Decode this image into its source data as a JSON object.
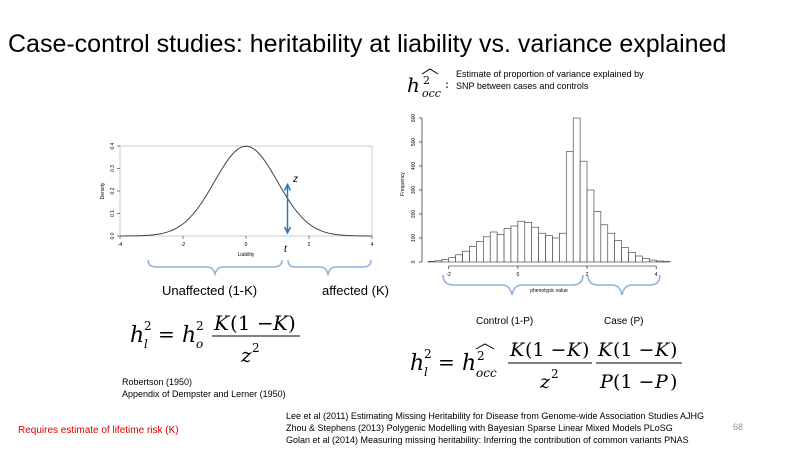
{
  "slide": {
    "title": "Case-control studies: heritability at liability vs. variance explained",
    "page_number": "68"
  },
  "estimate_note": {
    "line1": "Estimate of proportion of variance explained by",
    "line2": "SNP between cases and controls"
  },
  "left_plot": {
    "labels": {
      "z": "z",
      "t": "t"
    },
    "bracket_labels": {
      "unaffected": "Unaffected (1-K)",
      "affected": "affected (K)"
    },
    "arrow_color": "#2e75b6",
    "bracket_color": "#8fb0d8"
  },
  "right_plot": {
    "bracket_labels": {
      "control": "Control (1-P)",
      "case": "Case (P)"
    }
  },
  "citations": {
    "robertson": "Robertson (1950)",
    "dempster": "Appendix of Dempster and Lerner (1950)"
  },
  "references": [
    "Lee et al (2011) Estimating Missing Heritability for Disease from Genome-wide Association Studies AJHG",
    "Zhou & Stephens (2013) Polygenic Modelling with Bayesian Sparse Linear Mixed Models PLoSG",
    "Golan et al (2014) Measuring missing heritability: Inferring the contribution of common variants PNAS"
  ],
  "requirement_note": "Requires estimate of lifetime risk (K)",
  "requirement_color": "#e00000",
  "chart_data": [
    {
      "type": "line",
      "xlabel": "Liability",
      "ylabel": "Density",
      "x_ticks": [
        "-4",
        "-2",
        "0",
        "2",
        "4"
      ],
      "y_ticks": [
        "0.0",
        "0.1",
        "0.2",
        "0.3",
        "0.4"
      ],
      "xlim": [
        -4,
        4
      ],
      "ylim": [
        0,
        0.4
      ],
      "series": [
        {
          "x": [
            -4,
            -3.5,
            -3,
            -2.5,
            -2,
            -1.5,
            -1,
            -0.5,
            0,
            0.5,
            1,
            1.5,
            2,
            2.5,
            3,
            3.5,
            4
          ],
          "values": [
            0.0001,
            0.0009,
            0.0044,
            0.0175,
            0.054,
            0.1295,
            0.242,
            0.3521,
            0.3989,
            0.3521,
            0.242,
            0.1295,
            0.054,
            0.0175,
            0.0044,
            0.0009,
            0.0001
          ]
        }
      ],
      "threshold": 1.0
    },
    {
      "type": "bar",
      "xlabel": "phenotypic value",
      "ylabel": "Frequency",
      "x_ticks": [
        "-2",
        "0",
        "2",
        "4"
      ],
      "y_ticks": [
        "0",
        "100",
        "200",
        "300",
        "400",
        "500",
        "600"
      ],
      "xlim": [
        -2.6,
        4.4
      ],
      "ylim": [
        0,
        650
      ],
      "bin_width": 0.2,
      "bin_starts": [
        -2.6,
        -2.4,
        -2.2,
        -2.0,
        -1.8,
        -1.6,
        -1.4,
        -1.2,
        -1.0,
        -0.8,
        -0.6,
        -0.4,
        -0.2,
        0.0,
        0.2,
        0.4,
        0.6,
        0.8,
        1.0,
        1.2,
        1.4,
        1.6,
        1.8,
        2.0,
        2.2,
        2.4,
        2.6,
        2.8,
        3.0,
        3.2,
        3.4,
        3.6,
        3.8,
        4.0,
        4.2
      ],
      "values": [
        2,
        5,
        10,
        18,
        30,
        45,
        65,
        85,
        105,
        125,
        115,
        140,
        150,
        170,
        165,
        145,
        120,
        110,
        100,
        120,
        460,
        600,
        420,
        300,
        210,
        155,
        120,
        90,
        60,
        40,
        25,
        15,
        8,
        4,
        2
      ]
    }
  ]
}
